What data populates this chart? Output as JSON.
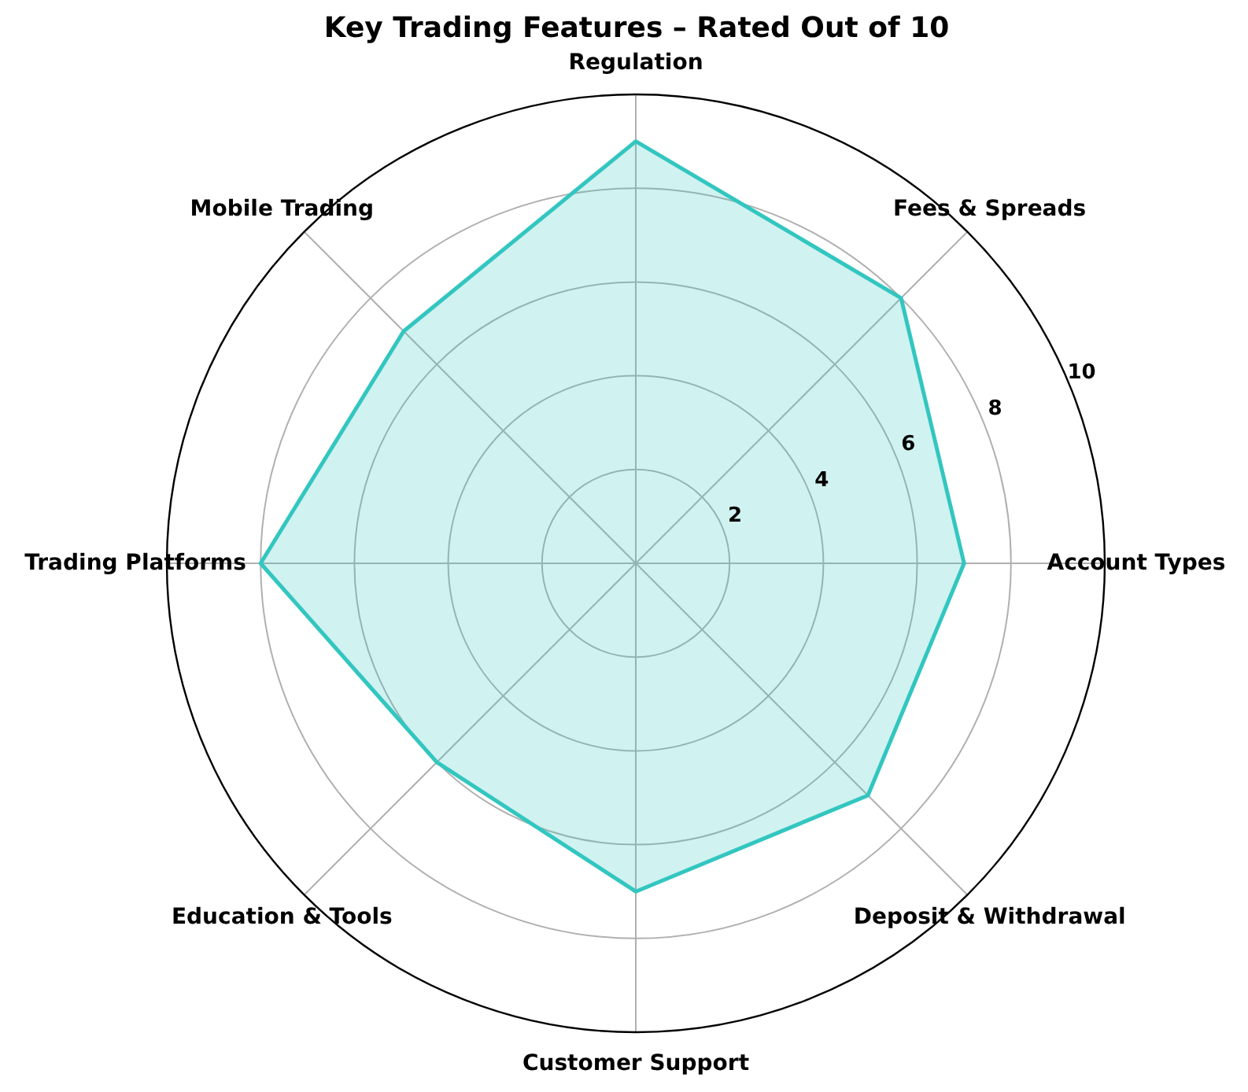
{
  "chart_data": {
    "type": "radar",
    "title": "Key Trading Features – Rated Out of 10",
    "categories": [
      "Regulation",
      "Fees & Spreads",
      "Account Types",
      "Deposit & Withdrawal",
      "Customer Support",
      "Education & Tools",
      "Trading Platforms",
      "Mobile Trading"
    ],
    "series": [
      {
        "color": "#33c6c0",
        "values": [
          9,
          8,
          7,
          7,
          7,
          6,
          8,
          7
        ]
      }
    ],
    "ylim": [
      0,
      10
    ],
    "yticks": [
      2,
      4,
      6,
      8,
      10
    ],
    "grid": true
  }
}
